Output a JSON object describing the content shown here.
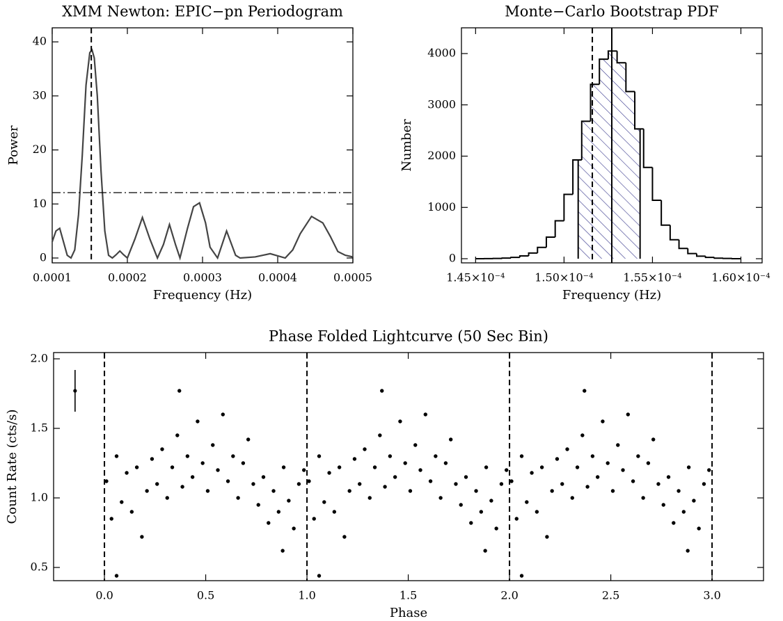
{
  "chart_data": [
    {
      "type": "line",
      "title": "XMM Newton: EPIC−pn Periodogram",
      "x_label": "Frequency (Hz)",
      "y_label": "Power",
      "x": [
        0.0001,
        0.000105,
        0.00011,
        0.000115,
        0.00012,
        0.000125,
        0.00013,
        0.000135,
        0.00014,
        0.000145,
        0.00015,
        0.000153,
        0.000156,
        0.00016,
        0.000165,
        0.00017,
        0.000175,
        0.00018,
        0.000185,
        0.00019,
        0.000195,
        0.0002,
        0.00021,
        0.00022,
        0.00023,
        0.00024,
        0.000248,
        0.000256,
        0.000264,
        0.00027,
        0.00028,
        0.000288,
        0.000296,
        0.000304,
        0.00031,
        0.00032,
        0.000332,
        0.000344,
        0.00035,
        0.00037,
        0.00039,
        0.00041,
        0.00042,
        0.00043,
        0.000445,
        0.00046,
        0.00047,
        0.00048,
        0.00049,
        0.0005
      ],
      "values": [
        3,
        5,
        5.5,
        3,
        0.5,
        0,
        1.5,
        8,
        19,
        32,
        38,
        38.5,
        37,
        30,
        16,
        5,
        0.5,
        0,
        0.6,
        1.3,
        0.6,
        0,
        3.5,
        7.5,
        3.5,
        0,
        2.5,
        6.2,
        2.5,
        0,
        5.5,
        9.5,
        10.2,
        6.5,
        2,
        0,
        5,
        0.5,
        0,
        0.2,
        0.8,
        0,
        1.5,
        4.5,
        7.7,
        6.5,
        4,
        1.2,
        0.5,
        0.2
      ],
      "color": "#444444",
      "xlim": [
        0.0001,
        0.0005
      ],
      "ylim": [
        -0.9,
        42.6
      ],
      "xticks": [
        0.0001,
        0.0002,
        0.0003,
        0.0004,
        0.0005
      ],
      "yticks": [
        0,
        10,
        20,
        30,
        40
      ],
      "vlines": [
        {
          "value": 0.000152,
          "style": "dashed"
        }
      ],
      "hlines": [
        {
          "value": 12.1,
          "style": "dashdot"
        }
      ]
    },
    {
      "type": "histogram",
      "title": "Monte−Carlo Bootstrap PDF",
      "x_label": "Frequency (Hz)",
      "y_label": "Number",
      "bins": [
        0.000145,
        0.0001455,
        0.000146,
        0.0001465,
        0.000147,
        0.0001475,
        0.000148,
        0.0001485,
        0.000149,
        0.0001495,
        0.00015,
        0.0001505,
        0.000151,
        0.0001515,
        0.000152,
        0.0001525,
        0.000153,
        0.0001535,
        0.000154,
        0.0001545,
        0.000155,
        0.0001555,
        0.000156,
        0.0001565,
        0.000157,
        0.0001575,
        0.000158,
        0.0001585,
        0.000159,
        0.0001595,
        0.00016
      ],
      "values": [
        0,
        2,
        5,
        12,
        25,
        55,
        110,
        220,
        420,
        740,
        1255,
        1926,
        2680,
        3400,
        3890,
        4050,
        3820,
        3260,
        2530,
        1780,
        1140,
        655,
        370,
        200,
        100,
        50,
        25,
        10,
        5,
        0
      ],
      "color": "#000000",
      "hatch_color": "#34348a",
      "shaded_range": [
        0.0001508,
        0.0001543
      ],
      "xlim": [
        0.0001442,
        0.0001612
      ],
      "ylim": [
        -81,
        4502
      ],
      "xticks": [
        {
          "value": 0.000145,
          "label": "1.45×10⁻⁴"
        },
        {
          "value": 0.00015,
          "label": "1.50×10⁻⁴"
        },
        {
          "value": 0.000155,
          "label": "1.55×10⁻⁴"
        },
        {
          "value": 0.00016,
          "label": "1.60×10⁻⁴"
        }
      ],
      "yticks": [
        0,
        1000,
        2000,
        3000,
        4000
      ],
      "vlines": [
        {
          "value": 0.0001516,
          "style": "dashed"
        },
        {
          "value": 0.0001527,
          "style": "solid"
        }
      ]
    },
    {
      "type": "scatter",
      "title": "Phase Folded Lightcurve (50 Sec Bin)",
      "x_label": "Phase",
      "y_label": "Count Rate (cts/s)",
      "x": [
        0.01,
        0.035,
        0.06,
        0.085,
        0.11,
        0.135,
        0.16,
        0.185,
        0.21,
        0.235,
        0.26,
        0.285,
        0.31,
        0.335,
        0.36,
        0.385,
        0.41,
        0.435,
        0.46,
        0.485,
        0.51,
        0.535,
        0.56,
        0.585,
        0.61,
        0.635,
        0.66,
        0.685,
        0.71,
        0.735,
        0.76,
        0.785,
        0.81,
        0.835,
        0.86,
        0.885,
        0.91,
        0.935,
        0.96,
        0.985,
        0.06,
        0.37,
        0.88,
        1.01,
        1.035,
        1.06,
        1.085,
        1.11,
        1.135,
        1.16,
        1.185,
        1.21,
        1.235,
        1.26,
        1.285,
        1.31,
        1.335,
        1.36,
        1.385,
        1.41,
        1.435,
        1.46,
        1.485,
        1.51,
        1.535,
        1.56,
        1.585,
        1.61,
        1.635,
        1.66,
        1.685,
        1.71,
        1.735,
        1.76,
        1.785,
        1.81,
        1.835,
        1.86,
        1.885,
        1.91,
        1.935,
        1.96,
        1.985,
        1.06,
        1.37,
        1.88,
        2.01,
        2.035,
        2.06,
        2.085,
        2.11,
        2.135,
        2.16,
        2.185,
        2.21,
        2.235,
        2.26,
        2.285,
        2.31,
        2.335,
        2.36,
        2.385,
        2.41,
        2.435,
        2.46,
        2.485,
        2.51,
        2.535,
        2.56,
        2.585,
        2.61,
        2.635,
        2.66,
        2.685,
        2.71,
        2.735,
        2.76,
        2.785,
        2.81,
        2.835,
        2.86,
        2.885,
        2.91,
        2.935,
        2.96,
        2.985,
        2.06,
        2.37,
        2.88
      ],
      "values": [
        1.12,
        0.85,
        1.3,
        0.97,
        1.18,
        0.9,
        1.22,
        0.72,
        1.05,
        1.28,
        1.1,
        1.35,
        1.0,
        1.22,
        1.45,
        1.08,
        1.3,
        1.15,
        1.55,
        1.25,
        1.05,
        1.38,
        1.2,
        1.6,
        1.12,
        1.3,
        1.0,
        1.25,
        1.42,
        1.1,
        0.95,
        1.15,
        0.82,
        1.05,
        0.9,
        1.22,
        0.98,
        0.78,
        1.1,
        1.2,
        0.44,
        1.77,
        0.62,
        1.12,
        0.85,
        1.3,
        0.97,
        1.18,
        0.9,
        1.22,
        0.72,
        1.05,
        1.28,
        1.1,
        1.35,
        1.0,
        1.22,
        1.45,
        1.08,
        1.3,
        1.15,
        1.55,
        1.25,
        1.05,
        1.38,
        1.2,
        1.6,
        1.12,
        1.3,
        1.0,
        1.25,
        1.42,
        1.1,
        0.95,
        1.15,
        0.82,
        1.05,
        0.9,
        1.22,
        0.98,
        0.78,
        1.1,
        1.2,
        0.44,
        1.77,
        0.62,
        1.12,
        0.85,
        1.3,
        0.97,
        1.18,
        0.9,
        1.22,
        0.72,
        1.05,
        1.28,
        1.1,
        1.35,
        1.0,
        1.22,
        1.45,
        1.08,
        1.3,
        1.15,
        1.55,
        1.25,
        1.05,
        1.38,
        1.2,
        1.6,
        1.12,
        1.3,
        1.0,
        1.25,
        1.42,
        1.1,
        0.95,
        1.15,
        0.82,
        1.05,
        0.9,
        1.22,
        0.98,
        0.78,
        1.1,
        1.2,
        0.44,
        1.77,
        0.62
      ],
      "color": "#000000",
      "error_bar": {
        "x": -0.145,
        "y": 1.77,
        "error": 0.15
      },
      "xlim": [
        -0.251,
        3.254
      ],
      "ylim": [
        0.405,
        2.045
      ],
      "xticks": [
        {
          "value": 0,
          "label": "0.0"
        },
        0.5,
        {
          "value": 1,
          "label": "1.0"
        },
        1.5,
        {
          "value": 2,
          "label": "2.0"
        },
        2.5,
        {
          "value": 3,
          "label": "3.0"
        }
      ],
      "yticks": [
        0.5,
        {
          "value": 1,
          "label": "1.0"
        },
        1.5,
        {
          "value": 2,
          "label": "2.0"
        }
      ],
      "vlines": [
        {
          "value": 0,
          "style": "dashed"
        },
        {
          "value": 1,
          "style": "dashed"
        },
        {
          "value": 2,
          "style": "dashed"
        },
        {
          "value": 3,
          "style": "dashed"
        }
      ]
    }
  ]
}
